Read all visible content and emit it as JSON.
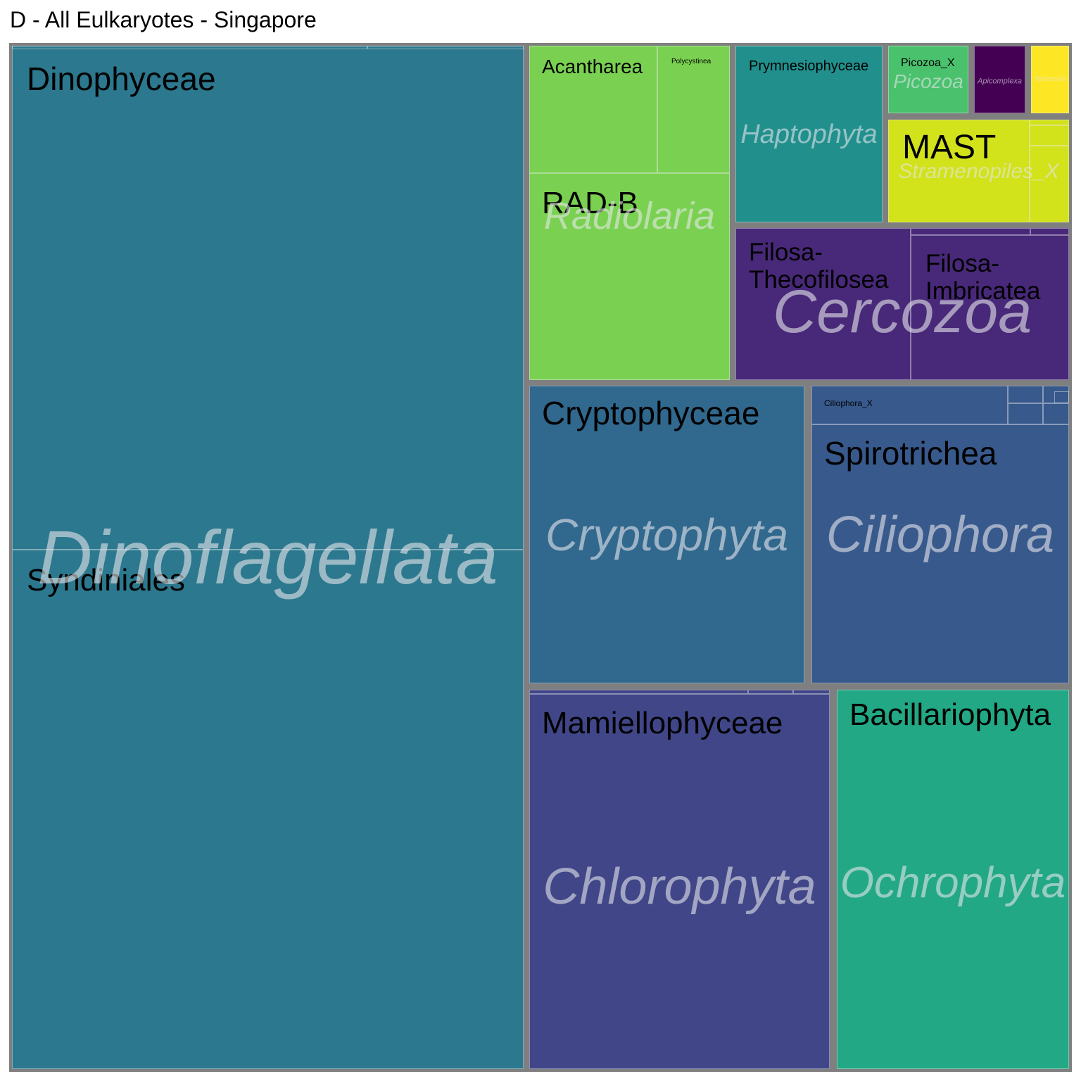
{
  "chart_data": {
    "type": "treemap",
    "title": "D - All Eulkaryotes - Singapore",
    "hierarchy": [
      "phylum",
      "class"
    ],
    "phyla": [
      {
        "name": "Dinoflagellata",
        "color": "#2c788e",
        "classes": [
          {
            "name": "Dinophyceae",
            "value": 49.4
          },
          {
            "name": "Syndiniales",
            "value": 49.9
          },
          {
            "name": "",
            "value": 0.3
          },
          {
            "name": "",
            "value": 0.2
          }
        ]
      },
      {
        "name": "Chlorophyta",
        "color": "#404688",
        "classes": [
          {
            "name": "Mamiellophyceae",
            "value": 22.9
          },
          {
            "name": "",
            "value": 0.2
          },
          {
            "name": "",
            "value": 0.05
          },
          {
            "name": "",
            "value": 0.05
          }
        ]
      },
      {
        "name": "Ochrophyta",
        "color": "#22a884",
        "classes": [
          {
            "name": "Bacillariophyta",
            "value": 14.1
          }
        ]
      },
      {
        "name": "Cryptophyta",
        "color": "#31688e",
        "classes": [
          {
            "name": "Cryptophyceae",
            "value": 15.9
          }
        ]
      },
      {
        "name": "Ciliophora",
        "color": "#38598c",
        "classes": [
          {
            "name": "Spirotrichea",
            "value": 12.1
          },
          {
            "name": "Ciliophora_X",
            "value": 1.5
          },
          {
            "name": "",
            "value": 0.25
          },
          {
            "name": "",
            "value": 0.1
          },
          {
            "name": "",
            "value": 0.07
          },
          {
            "name": "",
            "value": 0.03
          },
          {
            "name": "",
            "value": 0.02
          }
        ]
      },
      {
        "name": "Radiolaria",
        "color": "#7ad151",
        "classes": [
          {
            "name": "Acantharea",
            "value": 3.1
          },
          {
            "name": "Polycystinea",
            "value": 1.7
          },
          {
            "name": "RAD-B",
            "value": 7.2
          }
        ]
      },
      {
        "name": "Cercozoa",
        "color": "#482878",
        "classes": [
          {
            "name": "Filosa-Thecofilosea",
            "value": 5.0
          },
          {
            "name": "Filosa-Imbricatea",
            "value": 4.3
          },
          {
            "name": "",
            "value": 0.25
          },
          {
            "name": "",
            "value": 0.1
          }
        ]
      },
      {
        "name": "Haptophyta",
        "color": "#21908d",
        "classes": [
          {
            "name": "Prymnesiophyceae",
            "value": 6.2
          }
        ]
      },
      {
        "name": "Stramenopiles_X",
        "color": "#d2e21b",
        "classes": [
          {
            "name": "MAST",
            "value": 3.1
          },
          {
            "name": "",
            "value": 0.5
          },
          {
            "name": "",
            "value": 0.3
          },
          {
            "name": "",
            "value": 0.1
          }
        ]
      },
      {
        "name": "Picozoa",
        "color": "#4ac16d",
        "classes": [
          {
            "name": "Picozoa_X",
            "value": 1.25
          }
        ]
      },
      {
        "name": "Apicomplexa",
        "color": "#440154",
        "classes": [
          {
            "name": "",
            "value": 0.7
          }
        ]
      },
      {
        "name": "Telonemia",
        "color": "#fde725",
        "classes": [
          {
            "name": "",
            "value": 0.55
          }
        ]
      }
    ]
  }
}
